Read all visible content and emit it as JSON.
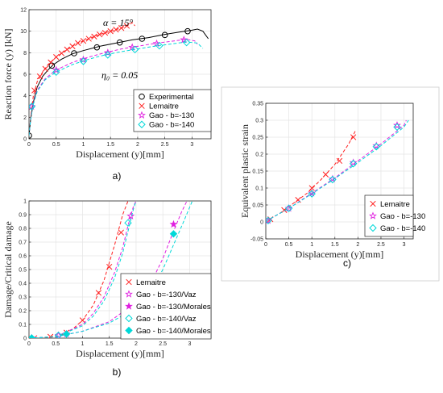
{
  "chart_data": [
    {
      "id": "a",
      "type": "line",
      "caption": "a)",
      "xlabel": "Displacement (y)[mm]",
      "ylabel": "Reaction force (y) [kN]",
      "xlim": [
        0,
        3.35
      ],
      "ylim": [
        0,
        12
      ],
      "xticks": [
        "0",
        "0.5",
        "1",
        "1.5",
        "2",
        "2.5",
        "3"
      ],
      "yticks": [
        "0",
        "2",
        "4",
        "6",
        "8",
        "10",
        "12"
      ],
      "annotations": [
        "α = 15°",
        "η₀ = 0.05"
      ],
      "legend_position": "bottom-right",
      "series": [
        {
          "name": "Experimental",
          "color": "#000000",
          "marker": "circle",
          "line_x": [
            0,
            0.03,
            0.08,
            0.15,
            0.25,
            0.35,
            0.45,
            0.6,
            0.8,
            1.0,
            1.3,
            1.6,
            1.9,
            2.2,
            2.5,
            2.8,
            3.0,
            3.1,
            3.2,
            3.3
          ],
          "line_y": [
            0.3,
            1.8,
            3.4,
            4.8,
            5.8,
            6.4,
            6.9,
            7.4,
            7.9,
            8.2,
            8.6,
            8.9,
            9.2,
            9.4,
            9.7,
            9.95,
            10.1,
            10.2,
            10.0,
            9.3
          ],
          "marker_x": [
            0,
            0.42,
            0.83,
            1.25,
            1.67,
            2.08,
            2.5,
            2.92
          ],
          "marker_y": [
            0.3,
            6.8,
            7.95,
            8.5,
            8.95,
            9.3,
            9.65,
            10.0
          ]
        },
        {
          "name": "Lemaitre",
          "color": "#ff2020",
          "marker": "x",
          "dashed": true,
          "line_x": [
            0,
            0.03,
            0.08,
            0.15,
            0.25,
            0.35,
            0.5,
            0.7,
            0.9,
            1.1,
            1.3,
            1.5,
            1.7,
            1.85,
            1.9,
            1.95
          ],
          "line_y": [
            0.3,
            2.0,
            4.0,
            5.3,
            6.2,
            6.9,
            7.6,
            8.3,
            8.9,
            9.3,
            9.7,
            10.0,
            10.3,
            10.6,
            10.8,
            10.5
          ],
          "marker_x": [
            0.1,
            0.2,
            0.3,
            0.4,
            0.5,
            0.6,
            0.7,
            0.8,
            0.9,
            1.0,
            1.1,
            1.2,
            1.3,
            1.4,
            1.5,
            1.6,
            1.7,
            1.8
          ],
          "marker_y": [
            4.5,
            5.8,
            6.5,
            7.1,
            7.6,
            7.95,
            8.3,
            8.6,
            8.9,
            9.1,
            9.3,
            9.5,
            9.7,
            9.85,
            10.0,
            10.15,
            10.3,
            10.5
          ]
        },
        {
          "name": "Gao - b=-130",
          "color": "#e020e0",
          "marker": "star",
          "dashed": true,
          "line_x": [
            0,
            0.03,
            0.08,
            0.15,
            0.3,
            0.5,
            0.8,
            1.1,
            1.4,
            1.7,
            2.0,
            2.3,
            2.6,
            2.9,
            3.05,
            3.1
          ],
          "line_y": [
            0.3,
            1.8,
            3.3,
            4.5,
            5.6,
            6.4,
            7.1,
            7.6,
            8.0,
            8.35,
            8.6,
            8.85,
            9.05,
            9.25,
            9.1,
            8.8
          ],
          "marker_x": [
            0.05,
            0.5,
            1.0,
            1.45,
            1.9,
            2.35,
            2.85
          ],
          "marker_y": [
            3.0,
            6.4,
            7.35,
            8.0,
            8.5,
            8.85,
            9.2
          ]
        },
        {
          "name": "Gao - b=-140",
          "color": "#00d8d8",
          "marker": "diamond",
          "dashed": true,
          "line_x": [
            0,
            0.03,
            0.08,
            0.15,
            0.3,
            0.5,
            0.8,
            1.1,
            1.4,
            1.7,
            2.0,
            2.3,
            2.6,
            2.9,
            3.1,
            3.2
          ],
          "line_y": [
            0.3,
            1.8,
            3.2,
            4.4,
            5.5,
            6.2,
            6.9,
            7.4,
            7.8,
            8.1,
            8.35,
            8.6,
            8.8,
            9.0,
            8.9,
            8.4
          ],
          "marker_x": [
            0.05,
            0.5,
            1.0,
            1.45,
            1.95,
            2.4,
            2.9
          ],
          "marker_y": [
            3.0,
            6.2,
            7.2,
            7.8,
            8.3,
            8.65,
            8.95
          ]
        }
      ]
    },
    {
      "id": "b",
      "type": "line",
      "caption": "b)",
      "xlabel": "Displacement (y)[mm]",
      "ylabel": "Damage/Critical damage",
      "xlim": [
        0,
        3.4
      ],
      "ylim": [
        0,
        1
      ],
      "xticks": [
        "0",
        "0.5",
        "1",
        "1.5",
        "2",
        "2.5",
        "3"
      ],
      "yticks": [
        "0",
        "0.1",
        "0.2",
        "0.3",
        "0.4",
        "0.5",
        "0.6",
        "0.7",
        "0.8",
        "0.9",
        "1"
      ],
      "legend_position": "bottom-right",
      "series": [
        {
          "name": "Lemaitre",
          "color": "#ff2020",
          "marker": "x",
          "dashed": true,
          "line_x": [
            0,
            0.3,
            0.6,
            0.8,
            1.0,
            1.2,
            1.4,
            1.6,
            1.75,
            1.85
          ],
          "line_y": [
            0,
            0.004,
            0.02,
            0.06,
            0.13,
            0.24,
            0.42,
            0.68,
            0.9,
            1.0
          ],
          "marker_x": [
            0.1,
            0.4,
            0.7,
            1.0,
            1.3,
            1.5,
            1.72
          ],
          "marker_y": [
            0.0,
            0.01,
            0.04,
            0.13,
            0.33,
            0.52,
            0.77
          ]
        },
        {
          "name": "Gao - b=-130/Vaz",
          "color": "#e020e0",
          "marker": "star-open",
          "dashed": true,
          "line_x": [
            0,
            0.5,
            1.0,
            1.2,
            1.4,
            1.6,
            1.75,
            1.85,
            1.95,
            2.0
          ],
          "line_y": [
            0,
            0.01,
            0.1,
            0.18,
            0.3,
            0.48,
            0.66,
            0.82,
            0.96,
            1.0
          ],
          "marker_x": [
            0.05,
            0.55,
            1.9
          ],
          "marker_y": [
            0.0,
            0.02,
            0.89
          ]
        },
        {
          "name": "Gao - b=-130/Morales",
          "color": "#e020e0",
          "marker": "star-filled",
          "dashed": true,
          "line_x": [
            0,
            0.5,
            1.0,
            1.5,
            2.0,
            2.3,
            2.5,
            2.7,
            2.85,
            2.95
          ],
          "line_y": [
            0,
            0.01,
            0.05,
            0.12,
            0.26,
            0.42,
            0.58,
            0.78,
            0.92,
            1.0
          ],
          "marker_x": [
            0.05,
            0.7,
            2.7
          ],
          "marker_y": [
            0.0,
            0.03,
            0.83
          ]
        },
        {
          "name": "Gao - b=-140/Vaz",
          "color": "#00d8d8",
          "marker": "diamond-open",
          "dashed": true,
          "line_x": [
            0,
            0.5,
            1.0,
            1.2,
            1.4,
            1.6,
            1.75,
            1.85,
            1.95,
            2.0
          ],
          "line_y": [
            0,
            0.01,
            0.09,
            0.16,
            0.27,
            0.44,
            0.62,
            0.78,
            0.94,
            1.0
          ],
          "marker_x": [
            0.05,
            0.55,
            1.85
          ],
          "marker_y": [
            0.0,
            0.02,
            0.84
          ]
        },
        {
          "name": "Gao - b=-140/Morales",
          "color": "#00d8d8",
          "marker": "diamond-filled",
          "dashed": true,
          "line_x": [
            0,
            0.5,
            1.0,
            1.5,
            2.0,
            2.3,
            2.5,
            2.7,
            2.9,
            3.05
          ],
          "line_y": [
            0,
            0.01,
            0.05,
            0.11,
            0.22,
            0.36,
            0.5,
            0.68,
            0.86,
            1.0
          ],
          "marker_x": [
            0.05,
            0.7,
            2.7
          ],
          "marker_y": [
            0.0,
            0.03,
            0.76
          ]
        }
      ]
    },
    {
      "id": "c",
      "type": "line",
      "caption": "c)",
      "xlabel": "Displacement (y)[mm]",
      "ylabel": "Equivalent plastic strain",
      "xlim": [
        0,
        3.2
      ],
      "ylim": [
        -0.05,
        0.35
      ],
      "xticks": [
        "0",
        "0.5",
        "1",
        "1.5",
        "2",
        "2.5",
        "3"
      ],
      "yticks": [
        "-0.05",
        "0",
        "0.05",
        "0.1",
        "0.15",
        "0.2",
        "0.25",
        "0.3",
        "0.35"
      ],
      "legend_position": "bottom-right",
      "series": [
        {
          "name": "Lemaitre",
          "color": "#ff2020",
          "marker": "x",
          "dashed": true,
          "line_x": [
            0,
            0.3,
            0.6,
            0.9,
            1.2,
            1.5,
            1.8,
            1.95
          ],
          "line_y": [
            0.002,
            0.025,
            0.055,
            0.085,
            0.125,
            0.17,
            0.23,
            0.27
          ],
          "marker_x": [
            0.1,
            0.4,
            0.7,
            1.0,
            1.3,
            1.6,
            1.9
          ],
          "marker_y": [
            0.008,
            0.035,
            0.065,
            0.1,
            0.14,
            0.18,
            0.25
          ]
        },
        {
          "name": "Gao - b=-130",
          "color": "#e020e0",
          "marker": "star",
          "dashed": true,
          "line_x": [
            0,
            0.5,
            1.0,
            1.5,
            2.0,
            2.5,
            3.0,
            3.05
          ],
          "line_y": [
            0.002,
            0.04,
            0.085,
            0.13,
            0.18,
            0.23,
            0.285,
            0.3
          ],
          "marker_x": [
            0.05,
            0.5,
            1.0,
            1.45,
            1.9,
            2.4,
            2.85
          ],
          "marker_y": [
            0.004,
            0.04,
            0.085,
            0.127,
            0.175,
            0.225,
            0.285
          ]
        },
        {
          "name": "Gao - b=-140",
          "color": "#00d8d8",
          "marker": "diamond",
          "dashed": true,
          "line_x": [
            0,
            0.5,
            1.0,
            1.5,
            2.0,
            2.5,
            3.0,
            3.1
          ],
          "line_y": [
            0.002,
            0.04,
            0.083,
            0.128,
            0.175,
            0.225,
            0.28,
            0.3
          ],
          "marker_x": [
            0.05,
            0.5,
            1.0,
            1.45,
            1.9,
            2.4,
            2.85
          ],
          "marker_y": [
            0.004,
            0.04,
            0.083,
            0.125,
            0.172,
            0.222,
            0.28
          ]
        }
      ]
    }
  ]
}
